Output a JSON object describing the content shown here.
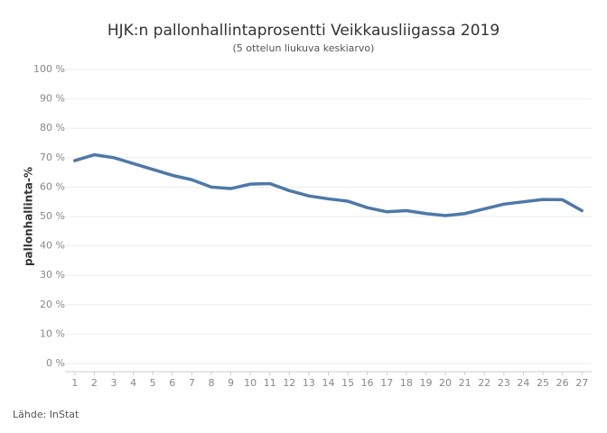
{
  "chart_data": {
    "type": "line",
    "title": "HJK:n pallonhallintaprosentti Veikkausliigassa 2019",
    "subtitle": "(5 ottelun liukuva keskiarvo)",
    "y_label": "pallonhallinta-%",
    "source": "Lähde: InStat",
    "x": [
      1,
      2,
      3,
      4,
      5,
      6,
      7,
      8,
      9,
      10,
      11,
      12,
      13,
      14,
      15,
      16,
      17,
      18,
      19,
      20,
      21,
      22,
      23,
      24,
      25,
      26,
      27
    ],
    "series": [
      {
        "color": "#4e79a7",
        "values": [
          69,
          71,
          70,
          68,
          66,
          64,
          62.5,
          60,
          59.5,
          61,
          61.2,
          58.8,
          57,
          56,
          55.2,
          53,
          51.6,
          52,
          51,
          50.3,
          51,
          52.6,
          54.2,
          55,
          55.8,
          55.7,
          52
        ]
      }
    ],
    "xlim": [
      0.5,
      27.5
    ],
    "xticks": [
      1,
      2,
      3,
      4,
      5,
      6,
      7,
      8,
      9,
      10,
      11,
      12,
      13,
      14,
      15,
      16,
      17,
      18,
      19,
      20,
      21,
      22,
      23,
      24,
      25,
      26,
      27
    ],
    "ylim": [
      0,
      100
    ],
    "yticks": [
      {
        "value": 0,
        "label": "0 %"
      },
      {
        "value": 10,
        "label": "10 %"
      },
      {
        "value": 20,
        "label": "20 %"
      },
      {
        "value": 30,
        "label": "30 %"
      },
      {
        "value": 40,
        "label": "40 %"
      },
      {
        "value": 50,
        "label": "50 %"
      },
      {
        "value": 60,
        "label": "60 %"
      },
      {
        "value": 70,
        "label": "70 %"
      },
      {
        "value": 80,
        "label": "80 %"
      },
      {
        "value": 90,
        "label": "90 %"
      },
      {
        "value": 100,
        "label": "100 %"
      }
    ],
    "grid": true
  }
}
